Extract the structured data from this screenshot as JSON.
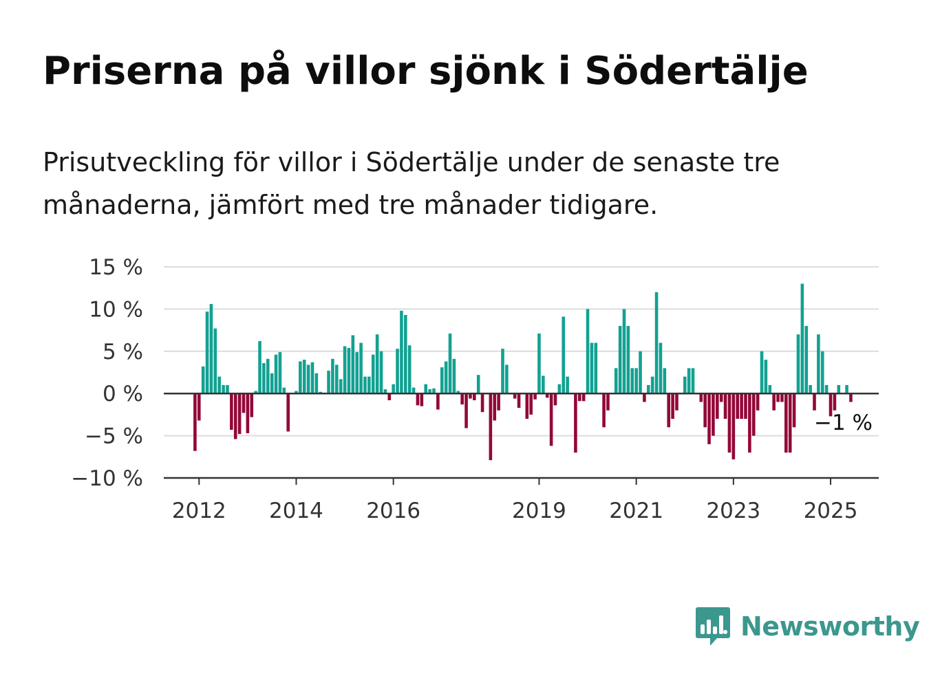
{
  "title": "Priserna på villor sjönk i Södertälje",
  "subtitle": "Prisutveckling för villor i Södertälje under de senaste tre månaderna, jämfört med tre månader tidigare.",
  "brand": {
    "name": "Newsworthy",
    "color": "#3c978e",
    "icon": "newsworthy-chat-bars-icon"
  },
  "colors": {
    "positive": "#12a192",
    "negative": "#930838",
    "grid": "#dcdcdc",
    "axis": "#333333"
  },
  "chart_data": {
    "type": "bar",
    "title": "Priserna på villor sjönk i Södertälje",
    "ylabel": "",
    "xlabel": "",
    "ylim": [
      -10,
      15
    ],
    "y_ticks": [
      15,
      10,
      5,
      0,
      -5,
      -10
    ],
    "y_tick_labels": [
      "15 %",
      "10 %",
      "5 %",
      "0 %",
      "−5 %",
      "−10 %"
    ],
    "x_tick_years": [
      2012,
      2014,
      2016,
      2019,
      2021,
      2023,
      2025
    ],
    "x_tick_labels": [
      "2012",
      "2014",
      "2016",
      "2019",
      "2021",
      "2023",
      "2025"
    ],
    "grid": true,
    "legend": "none",
    "start": "2011-12",
    "frequency": "monthly",
    "unit": "%",
    "values": [
      -6.8,
      -3.2,
      3.2,
      9.7,
      10.6,
      7.7,
      2.0,
      1.0,
      1.0,
      -4.3,
      -5.4,
      -4.8,
      -2.3,
      -4.7,
      -2.8,
      0.3,
      6.2,
      3.6,
      4.1,
      2.4,
      4.6,
      4.9,
      0.7,
      -4.5,
      0.0,
      0.3,
      3.8,
      4.0,
      3.4,
      3.7,
      2.4,
      0.2,
      0.1,
      2.7,
      4.1,
      3.4,
      1.7,
      5.6,
      5.4,
      6.9,
      4.9,
      6.0,
      2.0,
      2.0,
      4.6,
      7.0,
      5.0,
      0.5,
      -0.8,
      1.1,
      5.3,
      9.8,
      9.3,
      5.7,
      0.7,
      -1.4,
      -1.5,
      1.1,
      0.5,
      0.6,
      -1.9,
      3.1,
      3.8,
      7.1,
      4.1,
      0.3,
      -1.3,
      -4.1,
      -0.6,
      -0.8,
      2.2,
      -2.2,
      0.0,
      -7.9,
      -3.2,
      -2.0,
      5.3,
      3.4,
      0.1,
      -0.6,
      -1.7,
      0.1,
      -3.0,
      -2.5,
      -0.7,
      7.1,
      2.1,
      -0.5,
      -6.2,
      -1.4,
      1.1,
      9.1,
      2.0,
      0.0,
      -7.0,
      -0.9,
      -0.9,
      10.0,
      6.0,
      6.0,
      0.0,
      -4.0,
      -2.0,
      0.0,
      3.0,
      8.0,
      10.0,
      8.0,
      3.0,
      3.0,
      5.0,
      -1.0,
      1.0,
      2.0,
      12.0,
      6.0,
      3.0,
      -4.0,
      -3.0,
      -2.0,
      0.0,
      2.0,
      3.0,
      3.0,
      0.0,
      -1.0,
      -4.0,
      -6.0,
      -5.0,
      -3.0,
      -1.0,
      -3.0,
      -7.0,
      -7.8,
      -3.0,
      -3.0,
      -3.0,
      -7.0,
      -5.0,
      -2.0,
      5.0,
      4.0,
      1.0,
      -2.0,
      -1.0,
      -1.0,
      -7.0,
      -7.0,
      -4.0,
      7.0,
      13.0,
      8.0,
      1.0,
      -2.0,
      7.0,
      5.0,
      1.0,
      -2.7,
      -2.0,
      1.0,
      0.0,
      1.0,
      -1.0
    ],
    "end_label": "−1 %"
  }
}
